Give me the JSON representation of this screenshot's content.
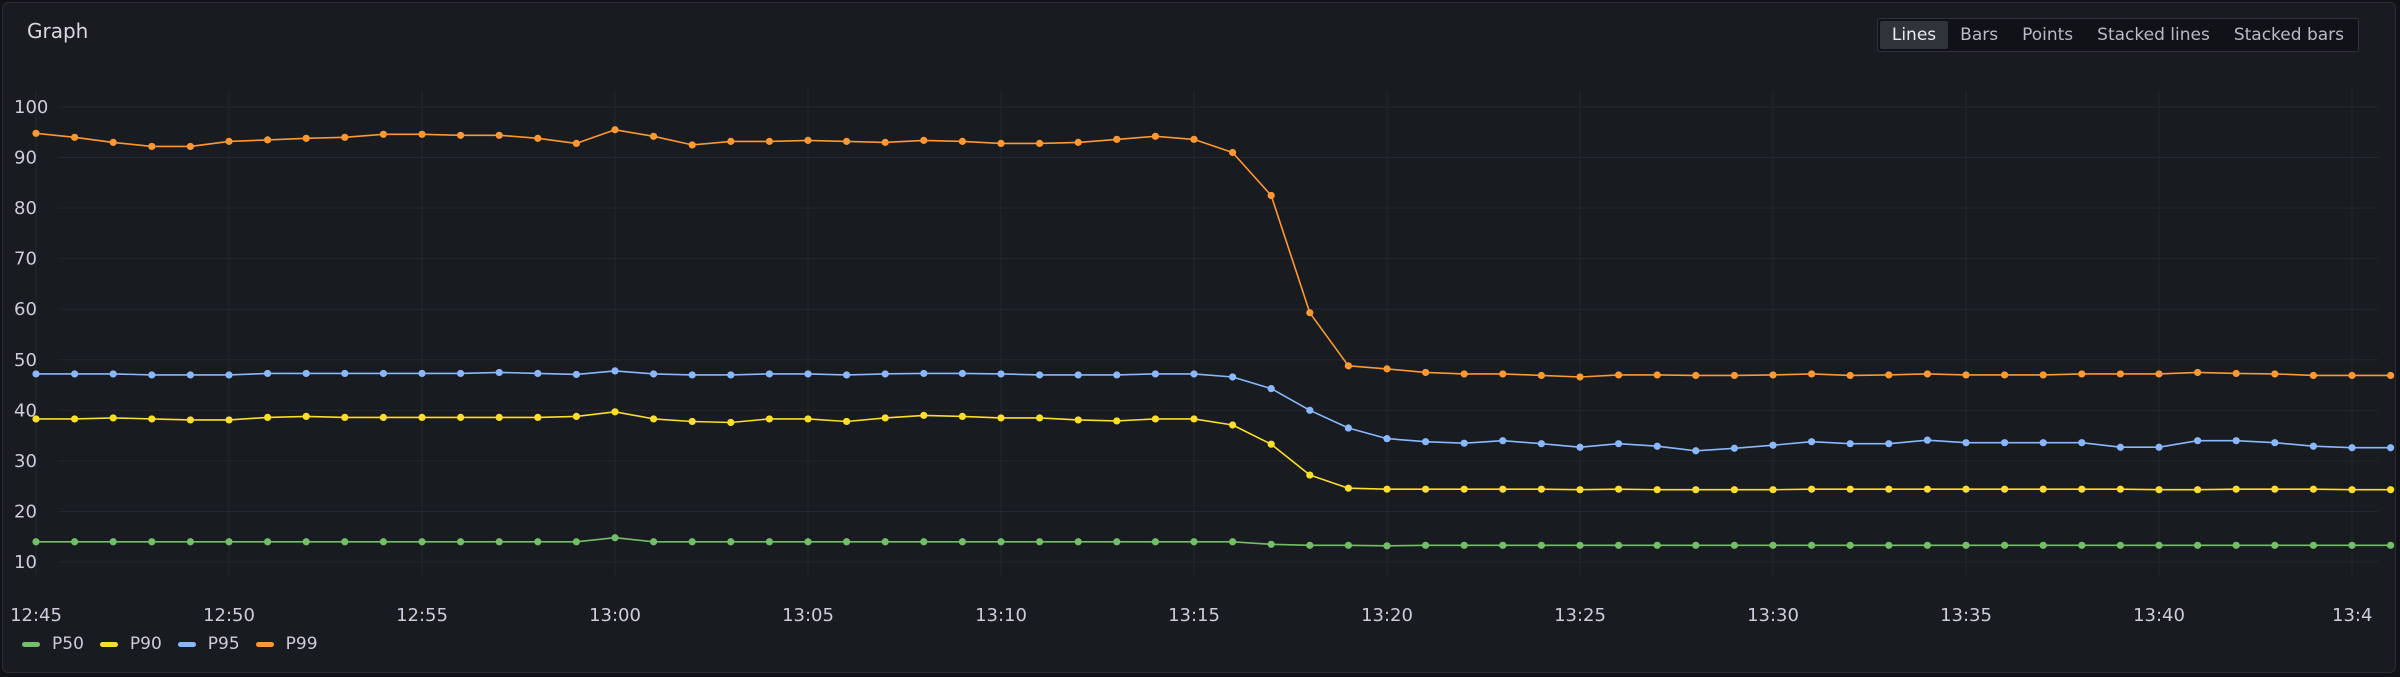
{
  "panel": {
    "title": "Graph",
    "view_options": [
      {
        "id": "lines",
        "label": "Lines",
        "active": true
      },
      {
        "id": "bars",
        "label": "Bars",
        "active": false
      },
      {
        "id": "points",
        "label": "Points",
        "active": false
      },
      {
        "id": "stacked-lines",
        "label": "Stacked lines",
        "active": false
      },
      {
        "id": "stacked-bars",
        "label": "Stacked bars",
        "active": false
      }
    ]
  },
  "chart_data": {
    "type": "line",
    "title": "Graph",
    "xlabel": "",
    "ylabel": "",
    "x_start": "12:45",
    "x_step_minutes": 1,
    "x_ticks": [
      "12:45",
      "12:50",
      "12:55",
      "13:00",
      "13:05",
      "13:10",
      "13:15",
      "13:20",
      "13:25",
      "13:30",
      "13:35",
      "13:40",
      "13:4"
    ],
    "y_ticks": [
      10,
      20,
      30,
      40,
      50,
      60,
      70,
      80,
      90,
      100
    ],
    "ylim": [
      5,
      103
    ],
    "grid": true,
    "legend_position": "bottom-left",
    "series": [
      {
        "name": "P50",
        "color": "#73bf69",
        "values": [
          14,
          14,
          14,
          14,
          14,
          14,
          14,
          14,
          14,
          14,
          14,
          14,
          14,
          14,
          14,
          14.8,
          14,
          14,
          14,
          14,
          14,
          14,
          14,
          14,
          14,
          14,
          14,
          14,
          14,
          14,
          14,
          14,
          13.5,
          13.3,
          13.3,
          13.2,
          13.3,
          13.3,
          13.3,
          13.3,
          13.3,
          13.3,
          13.3,
          13.3,
          13.3,
          13.3,
          13.3,
          13.3,
          13.3,
          13.3,
          13.3,
          13.3,
          13.3,
          13.3,
          13.3,
          13.3,
          13.3,
          13.3,
          13.3,
          13.3,
          13.3,
          13.3
        ]
      },
      {
        "name": "P90",
        "color": "#fade2a",
        "values": [
          38.3,
          38.3,
          38.5,
          38.3,
          38.1,
          38.1,
          38.6,
          38.8,
          38.6,
          38.6,
          38.6,
          38.6,
          38.6,
          38.6,
          38.8,
          39.7,
          38.3,
          37.8,
          37.6,
          38.3,
          38.3,
          37.8,
          38.5,
          39.0,
          38.8,
          38.5,
          38.5,
          38.1,
          37.9,
          38.3,
          38.3,
          37.1,
          33.3,
          27.2,
          24.6,
          24.4,
          24.4,
          24.4,
          24.4,
          24.4,
          24.3,
          24.4,
          24.3,
          24.3,
          24.3,
          24.3,
          24.4,
          24.4,
          24.4,
          24.4,
          24.4,
          24.4,
          24.4,
          24.4,
          24.4,
          24.3,
          24.3,
          24.4,
          24.4,
          24.4,
          24.3,
          24.3
        ]
      },
      {
        "name": "P95",
        "color": "#8ab8ff",
        "values": [
          47.2,
          47.2,
          47.2,
          47.0,
          47.0,
          47.0,
          47.3,
          47.3,
          47.3,
          47.3,
          47.3,
          47.3,
          47.5,
          47.3,
          47.1,
          47.8,
          47.2,
          47.0,
          47.0,
          47.2,
          47.2,
          47.0,
          47.2,
          47.3,
          47.3,
          47.2,
          47.0,
          47.0,
          47.0,
          47.2,
          47.2,
          46.6,
          44.3,
          40.0,
          36.5,
          34.4,
          33.8,
          33.5,
          34.0,
          33.4,
          32.7,
          33.4,
          32.9,
          32.0,
          32.5,
          33.1,
          33.8,
          33.4,
          33.4,
          34.1,
          33.6,
          33.6,
          33.6,
          33.6,
          32.7,
          32.7,
          34.0,
          34.0,
          33.6,
          32.9,
          32.6,
          32.6
        ]
      },
      {
        "name": "P99",
        "color": "#ff9830",
        "values": [
          94.8,
          94.0,
          93.0,
          92.2,
          92.2,
          93.2,
          93.5,
          93.8,
          94.0,
          94.6,
          94.6,
          94.4,
          94.4,
          93.8,
          92.8,
          95.5,
          94.2,
          92.5,
          93.2,
          93.2,
          93.4,
          93.2,
          93.0,
          93.4,
          93.2,
          92.8,
          92.8,
          93.0,
          93.6,
          94.2,
          93.6,
          91.0,
          82.5,
          59.3,
          48.8,
          48.2,
          47.5,
          47.2,
          47.2,
          46.9,
          46.6,
          47.0,
          47.0,
          46.9,
          46.9,
          47.0,
          47.2,
          46.9,
          47.0,
          47.2,
          47.0,
          47.0,
          47.0,
          47.2,
          47.2,
          47.2,
          47.5,
          47.3,
          47.2,
          46.9,
          46.9,
          46.9
        ]
      }
    ]
  }
}
